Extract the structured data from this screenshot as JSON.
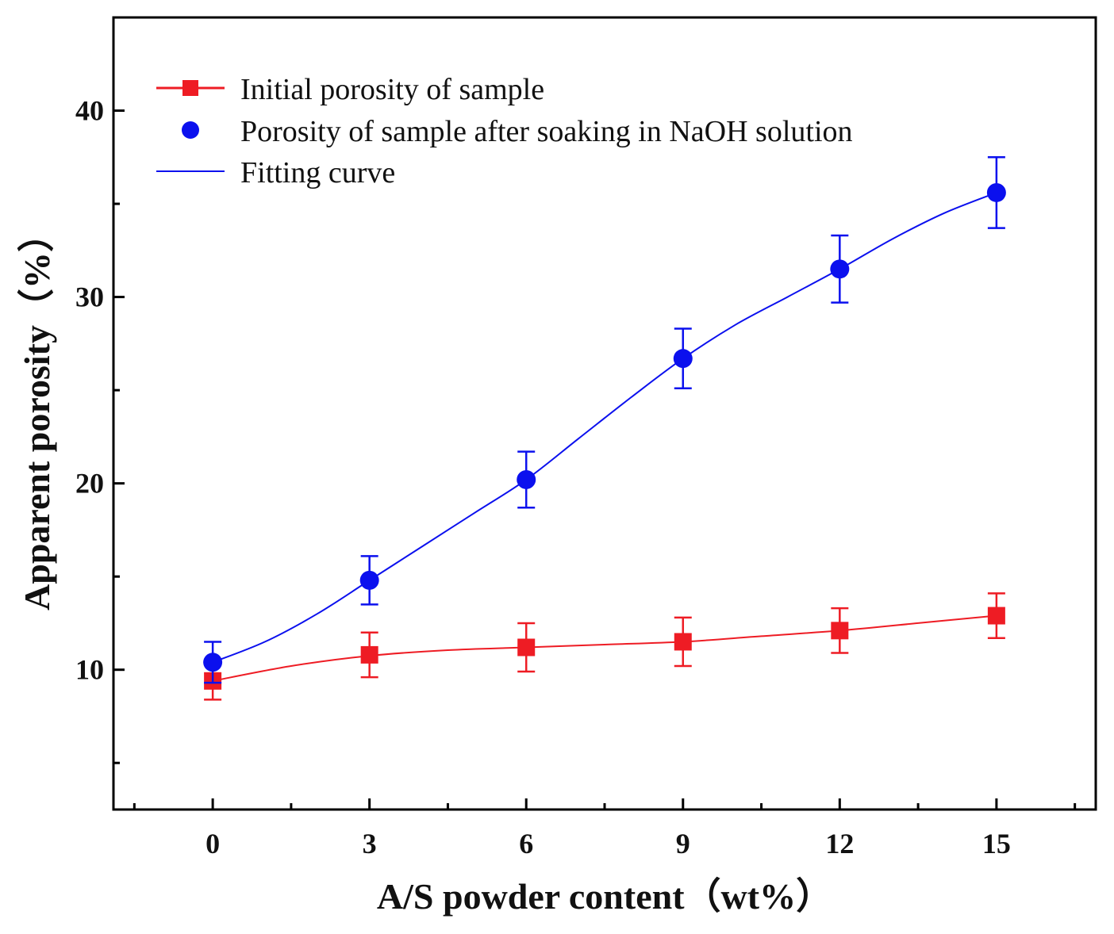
{
  "chart_data": {
    "type": "line",
    "xlabel": "A/S powder content（wt%）",
    "ylabel": "Apparent porosity（%）",
    "xlim": [
      -1.9,
      16.9
    ],
    "ylim": [
      2.5,
      45
    ],
    "x_ticks": [
      0,
      3,
      6,
      9,
      12,
      15
    ],
    "x_minor_ticks": [
      -1.5,
      1.5,
      4.5,
      7.5,
      10.5,
      13.5,
      16.5
    ],
    "y_ticks": [
      10,
      20,
      30,
      40
    ],
    "y_minor_ticks": [
      5,
      15,
      25,
      35
    ],
    "legend_position": "top-left",
    "series": [
      {
        "name": "Initial porosity of sample",
        "marker": "square",
        "color": "#ee1c24",
        "x": [
          0,
          3,
          6,
          9,
          12,
          15
        ],
        "y": [
          9.4,
          10.8,
          11.2,
          11.5,
          12.1,
          12.9
        ],
        "error": [
          1.0,
          1.2,
          1.3,
          1.3,
          1.2,
          1.2
        ],
        "fit": [
          [
            0,
            9.4
          ],
          [
            1.5,
            10.2
          ],
          [
            3,
            10.75
          ],
          [
            4.5,
            11.05
          ],
          [
            6,
            11.2
          ],
          [
            7.5,
            11.35
          ],
          [
            9,
            11.5
          ],
          [
            10.5,
            11.8
          ],
          [
            12,
            12.1
          ],
          [
            13.5,
            12.5
          ],
          [
            15,
            12.9
          ]
        ]
      },
      {
        "name": "Porosity of sample after soaking in NaOH solution",
        "marker": "circle",
        "color": "#0b10ee",
        "x": [
          0,
          3,
          6,
          9,
          12,
          15
        ],
        "y": [
          10.4,
          14.8,
          20.2,
          26.7,
          31.5,
          35.6
        ],
        "error": [
          1.1,
          1.3,
          1.5,
          1.6,
          1.8,
          1.9
        ],
        "fit": [
          [
            0,
            10.4
          ],
          [
            1,
            11.5
          ],
          [
            2,
            13.0
          ],
          [
            3,
            14.8
          ],
          [
            4,
            16.6
          ],
          [
            5,
            18.4
          ],
          [
            6,
            20.2
          ],
          [
            7,
            22.4
          ],
          [
            8,
            24.6
          ],
          [
            9,
            26.7
          ],
          [
            10,
            28.5
          ],
          [
            11,
            30.0
          ],
          [
            12,
            31.5
          ],
          [
            13,
            33.1
          ],
          [
            14,
            34.5
          ],
          [
            15,
            35.6
          ]
        ]
      }
    ],
    "legend": [
      {
        "label": "Initial porosity of sample",
        "style": "line-square",
        "color": "#ee1c24"
      },
      {
        "label": "Porosity of sample after soaking in NaOH solution",
        "style": "circle",
        "color": "#0b10ee"
      },
      {
        "label": "Fitting curve",
        "style": "line",
        "color": "#0b10ee"
      }
    ]
  }
}
